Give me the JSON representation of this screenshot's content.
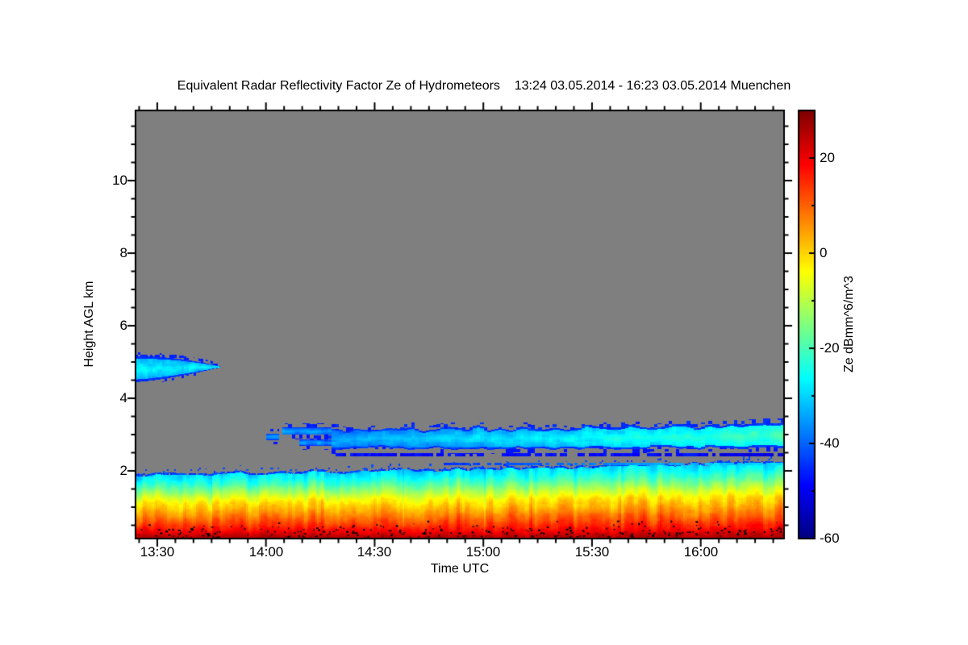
{
  "page": {
    "background": "#ffffff"
  },
  "chart_data": {
    "type": "heatmap",
    "title": "Equivalent Radar Reflectivity Factor Ze of Hydrometeors    13:24 03.05.2014 - 16:23 03.05.2014 Muenchen",
    "xlabel": "Time UTC",
    "ylabel": "Height AGL km",
    "time_start": "13:24",
    "time_end": "16:23",
    "date": "03.05.2014",
    "location": "Muenchen",
    "duration_min": 179,
    "x_ticks": [
      {
        "label": "13:30",
        "minute": 6
      },
      {
        "label": "14:00",
        "minute": 36
      },
      {
        "label": "14:30",
        "minute": 66
      },
      {
        "label": "15:00",
        "minute": 96
      },
      {
        "label": "15:30",
        "minute": 126
      },
      {
        "label": "16:00",
        "minute": 156
      }
    ],
    "x_minor_step_min": 5,
    "y_range_km": [
      0.133,
      11.933
    ],
    "y_ticks": [
      {
        "label": "10",
        "km": 10
      },
      {
        "label": "8",
        "km": 8
      },
      {
        "label": "6",
        "km": 6
      },
      {
        "label": "4",
        "km": 4
      },
      {
        "label": "2",
        "km": 2
      }
    ],
    "y_minor_step_km": 0.5,
    "colorbar": {
      "label": "Ze dBmm^6/m^3",
      "range_db": [
        -60,
        30
      ],
      "ticks": [
        {
          "label": "20",
          "value": 20
        },
        {
          "label": "0",
          "value": 0
        },
        {
          "label": "-20",
          "value": -20
        },
        {
          "label": "-40",
          "value": -40
        },
        {
          "label": "-60",
          "value": -60
        }
      ],
      "minor_step_db": 10,
      "colormap": "jet"
    },
    "no_data_color": "#7f7f7f",
    "frame_color": "#000000",
    "features": {
      "upper_cloud": {
        "t0_min": 0,
        "t1_min": 24,
        "top_km": 5.17,
        "base_km": 4.46,
        "taper_top_km": 0.3,
        "taper_base_km": 0.42,
        "core_db": -34,
        "edge_db": -46
      },
      "mid_cloud": {
        "blob_t_min": [
          36,
          39.5
        ],
        "blob_km": [
          2.86,
          3.04
        ],
        "prongA_t_min": [
          40.5,
          54
        ],
        "prongA_km": [
          3.0,
          3.2
        ],
        "prongB_t_min": [
          45,
          54
        ],
        "prongB_km": [
          2.7,
          2.87
        ],
        "main_t_min": [
          54,
          179
        ],
        "top_km": 3.16,
        "top_rise_km": 0.11,
        "base_km": 2.63,
        "base_db": -40,
        "base_db_end": -27,
        "core_boost_db": 7,
        "edge_db": -46
      },
      "line_upper": {
        "t0_min": 55,
        "km": [
          2.42,
          2.5
        ],
        "db": -50
      },
      "line_lower": {
        "t0_min": 85,
        "km": [
          2.17,
          2.24
        ],
        "db_start": -46,
        "db_end": -30
      },
      "boundary_layer": {
        "top_start_km": 1.92,
        "top_end_km": 2.28,
        "base_km": 0.13,
        "wave_km": 0.06,
        "edge_db": -46,
        "streak_db": 4.5,
        "bottom_row_db": 21,
        "profile_u_db": [
          [
            0,
            -31
          ],
          [
            0.06,
            -28
          ],
          [
            0.12,
            -25
          ],
          [
            0.2,
            -20
          ],
          [
            0.28,
            -14
          ],
          [
            0.36,
            -8
          ],
          [
            0.45,
            -2
          ],
          [
            0.55,
            2
          ],
          [
            0.65,
            7
          ],
          [
            0.75,
            12
          ],
          [
            0.83,
            16
          ],
          [
            0.9,
            20
          ],
          [
            0.95,
            24
          ],
          [
            1,
            26
          ]
        ]
      },
      "ground_speckles": {
        "count": 270,
        "km_range": [
          0.15,
          0.9
        ],
        "color": "#000000"
      }
    }
  }
}
